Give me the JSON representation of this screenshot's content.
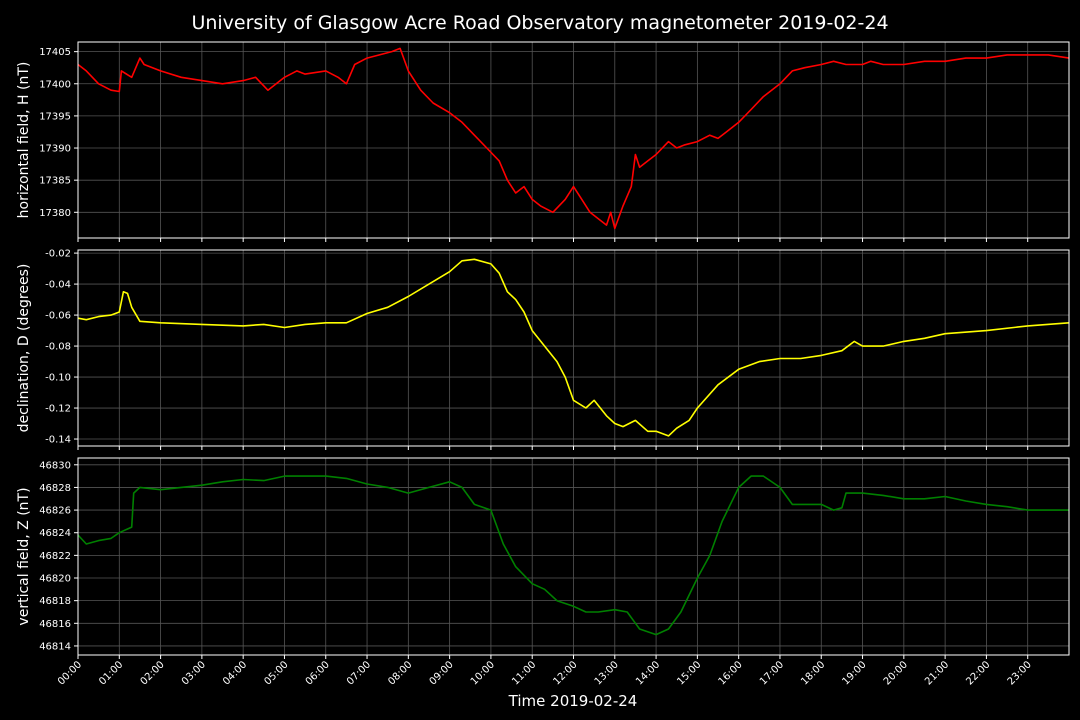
{
  "title": "University of Glasgow Acre Road Observatory magnetometer 2019-02-24",
  "xlabel": "Time 2019-02-24",
  "time_ticks": [
    "00:00",
    "01:00",
    "02:00",
    "03:00",
    "04:00",
    "05:00",
    "06:00",
    "07:00",
    "08:00",
    "09:00",
    "10:00",
    "11:00",
    "12:00",
    "13:00",
    "14:00",
    "15:00",
    "16:00",
    "17:00",
    "18:00",
    "19:00",
    "20:00",
    "21:00",
    "22:00",
    "23:00"
  ],
  "chart_data": [
    {
      "type": "line",
      "ylabel": "horizontal field, H (nT)",
      "color": "#ff0000",
      "x_unit": "hours",
      "xlim": [
        0,
        24
      ],
      "ylim": [
        17376,
        17406.5
      ],
      "yticks": [
        17380,
        17385,
        17390,
        17395,
        17400,
        17405
      ],
      "grid": true,
      "series": [
        {
          "x": [
            0,
            0.2,
            0.5,
            0.8,
            1.0,
            1.05,
            1.3,
            1.5,
            1.6,
            2.0,
            2.5,
            3.0,
            3.5,
            4.0,
            4.3,
            4.6,
            5.0,
            5.3,
            5.5,
            6.0,
            6.3,
            6.5,
            6.7,
            7.0,
            7.3,
            7.6,
            7.8,
            8.0,
            8.3,
            8.6,
            9.0,
            9.3,
            9.6,
            9.9,
            10.2,
            10.4,
            10.6,
            10.8,
            11.0,
            11.2,
            11.5,
            11.8,
            12.0,
            12.2,
            12.4,
            12.6,
            12.8,
            12.9,
            13.0,
            13.2,
            13.4,
            13.5,
            13.6,
            13.8,
            14.0,
            14.3,
            14.5,
            14.7,
            15.0,
            15.3,
            15.5,
            15.7,
            16.0,
            16.3,
            16.6,
            17.0,
            17.3,
            17.6,
            18.0,
            18.3,
            18.6,
            19.0,
            19.2,
            19.5,
            20.0,
            20.5,
            21.0,
            21.5,
            22.0,
            22.5,
            23.0,
            23.5,
            24.0
          ],
          "y": [
            17403,
            17402,
            17400,
            17399,
            17398.8,
            17402,
            17401,
            17404,
            17403,
            17402,
            17401,
            17400.5,
            17400,
            17400.5,
            17401,
            17399,
            17401,
            17402,
            17401.5,
            17402,
            17401,
            17400,
            17403,
            17404,
            17404.5,
            17405,
            17405.5,
            17402,
            17399,
            17397,
            17395.5,
            17394,
            17392,
            17390,
            17388,
            17385,
            17383,
            17384,
            17382,
            17381,
            17380,
            17382,
            17384,
            17382,
            17380,
            17379,
            17378,
            17380,
            17377.5,
            17381,
            17384,
            17389,
            17387,
            17388,
            17389,
            17391,
            17390,
            17390.5,
            17391,
            17392,
            17391.5,
            17392.5,
            17394,
            17396,
            17398,
            17400,
            17402,
            17402.5,
            17403,
            17403.5,
            17403,
            17403,
            17403.5,
            17403,
            17403,
            17403.5,
            17403.5,
            17404,
            17404,
            17404.5,
            17404.5,
            17404.5,
            17404
          ]
        }
      ]
    },
    {
      "type": "line",
      "ylabel": "declination, D (degrees)",
      "color": "#ffff00",
      "x_unit": "hours",
      "xlim": [
        0,
        24
      ],
      "ylim": [
        -0.1445,
        -0.018
      ],
      "yticks": [
        -0.14,
        -0.12,
        -0.1,
        -0.08,
        -0.06,
        -0.04,
        -0.02
      ],
      "grid": true,
      "series": [
        {
          "x": [
            0,
            0.2,
            0.5,
            0.8,
            1.0,
            1.1,
            1.2,
            1.3,
            1.5,
            2.0,
            3.0,
            4.0,
            4.5,
            5.0,
            5.5,
            6.0,
            6.5,
            7.0,
            7.5,
            8.0,
            8.5,
            9.0,
            9.3,
            9.6,
            10.0,
            10.2,
            10.4,
            10.6,
            10.8,
            11.0,
            11.3,
            11.6,
            11.8,
            12.0,
            12.3,
            12.5,
            12.8,
            13.0,
            13.2,
            13.5,
            13.8,
            14.0,
            14.3,
            14.5,
            14.8,
            15.0,
            15.5,
            16.0,
            16.5,
            17.0,
            17.5,
            18.0,
            18.5,
            18.8,
            19.0,
            19.5,
            20.0,
            20.5,
            21.0,
            22.0,
            23.0,
            24.0
          ],
          "y": [
            -0.062,
            -0.063,
            -0.061,
            -0.06,
            -0.058,
            -0.045,
            -0.046,
            -0.055,
            -0.064,
            -0.065,
            -0.066,
            -0.067,
            -0.066,
            -0.068,
            -0.066,
            -0.065,
            -0.065,
            -0.059,
            -0.055,
            -0.048,
            -0.04,
            -0.032,
            -0.025,
            -0.024,
            -0.027,
            -0.033,
            -0.045,
            -0.05,
            -0.058,
            -0.07,
            -0.08,
            -0.09,
            -0.1,
            -0.115,
            -0.12,
            -0.115,
            -0.125,
            -0.13,
            -0.132,
            -0.128,
            -0.135,
            -0.135,
            -0.138,
            -0.133,
            -0.128,
            -0.12,
            -0.105,
            -0.095,
            -0.09,
            -0.088,
            -0.088,
            -0.086,
            -0.083,
            -0.077,
            -0.08,
            -0.08,
            -0.077,
            -0.075,
            -0.072,
            -0.07,
            -0.067,
            -0.065
          ]
        }
      ]
    },
    {
      "type": "line",
      "ylabel": "vertical field, Z (nT)",
      "color": "#008000",
      "x_unit": "hours",
      "xlim": [
        0,
        24
      ],
      "ylim": [
        46813.2,
        46830.6
      ],
      "yticks": [
        46814,
        46816,
        46818,
        46820,
        46822,
        46824,
        46826,
        46828,
        46830
      ],
      "grid": true,
      "series": [
        {
          "x": [
            0,
            0.2,
            0.5,
            0.8,
            1.0,
            1.3,
            1.35,
            1.5,
            2.0,
            2.5,
            3.0,
            3.5,
            4.0,
            4.5,
            5.0,
            5.5,
            6.0,
            6.5,
            7.0,
            7.5,
            8.0,
            8.5,
            9.0,
            9.3,
            9.6,
            10.0,
            10.3,
            10.6,
            11.0,
            11.3,
            11.6,
            12.0,
            12.3,
            12.6,
            13.0,
            13.3,
            13.6,
            14.0,
            14.3,
            14.6,
            15.0,
            15.3,
            15.6,
            16.0,
            16.3,
            16.6,
            17.0,
            17.3,
            17.6,
            18.0,
            18.3,
            18.5,
            18.6,
            19.0,
            19.5,
            20.0,
            20.5,
            21.0,
            21.5,
            22.0,
            22.5,
            23.0,
            23.5,
            24.0
          ],
          "y": [
            46823.8,
            46823,
            46823.3,
            46823.5,
            46824,
            46824.5,
            46827.5,
            46828,
            46827.8,
            46828,
            46828.2,
            46828.5,
            46828.7,
            46828.6,
            46829,
            46829,
            46829,
            46828.8,
            46828.3,
            46828,
            46827.5,
            46828,
            46828.5,
            46828,
            46826.5,
            46826,
            46823,
            46821,
            46819.5,
            46819,
            46818,
            46817.5,
            46817,
            46817,
            46817.2,
            46817,
            46815.5,
            46815,
            46815.5,
            46817,
            46820,
            46822,
            46825,
            46828,
            46829,
            46829,
            46828,
            46826.5,
            46826.5,
            46826.5,
            46826,
            46826.2,
            46827.5,
            46827.5,
            46827.3,
            46827,
            46827,
            46827.2,
            46826.8,
            46826.5,
            46826.3,
            46826,
            46826,
            46826
          ]
        }
      ]
    }
  ]
}
